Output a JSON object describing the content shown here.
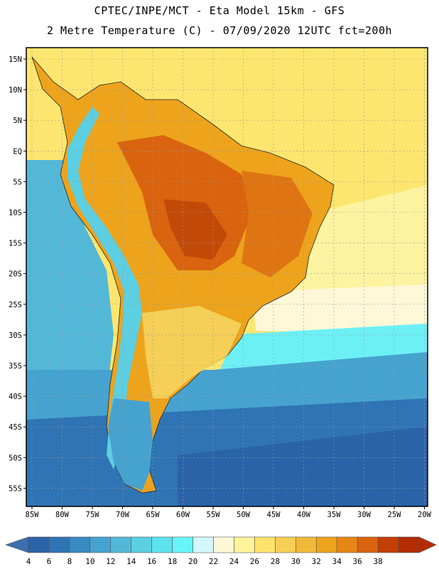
{
  "title_line1": "CPTEC/INPE/MCT -  Eta Model 15km - GFS",
  "title_line2": "2 Metre Temperature (C) - 07/09/2020 12UTC fct=200h",
  "lat_labels": [
    "15N",
    "10N",
    "5N",
    "EQ",
    "5S",
    "10S",
    "15S",
    "20S",
    "25S",
    "30S",
    "35S",
    "40S",
    "45S",
    "50S",
    "55S"
  ],
  "lon_labels": [
    "85W",
    "80W",
    "75W",
    "70W",
    "65W",
    "60W",
    "55W",
    "50W",
    "45W",
    "40W",
    "35W",
    "30W",
    "25W",
    "20W"
  ],
  "colorbar": {
    "levels": [
      "4",
      "6",
      "8",
      "10",
      "12",
      "14",
      "16",
      "18",
      "20",
      "22",
      "24",
      "26",
      "28",
      "30",
      "32",
      "34",
      "36",
      "38"
    ],
    "colors": [
      "#2a63a8",
      "#2f74b4",
      "#3a8ac2",
      "#46a3cf",
      "#53b8d8",
      "#5ccfe2",
      "#5ee3ee",
      "#66f6fb",
      "#d4f7fb",
      "#fff8d8",
      "#fff39b",
      "#fde36c",
      "#f5cf57",
      "#f1b93a",
      "#eda31c",
      "#e58716",
      "#d9630e",
      "#c23f05",
      "#b32c03"
    ],
    "under_color": "#3b6fb0",
    "over_color": "#b32c03"
  },
  "map": {
    "background_warm": "#fde66f",
    "ocean_colors": {
      "atlantic_north": "#fde66f",
      "atlantic_mid": "#fdf3a0",
      "atlantic_south_warm": "#fff8d8",
      "atlantic_cool": "#6cf0f6",
      "pacific_cool": "#53b8d8",
      "southern_cold": "#2f74b4"
    },
    "land_colors": {
      "amazon_hot": "#d9630e",
      "central_hot": "#c7510a",
      "savanna": "#eda31c",
      "south_warm": "#f5cf57",
      "andes": "#5ccfe2",
      "patagonia": "#46a3cf"
    }
  }
}
